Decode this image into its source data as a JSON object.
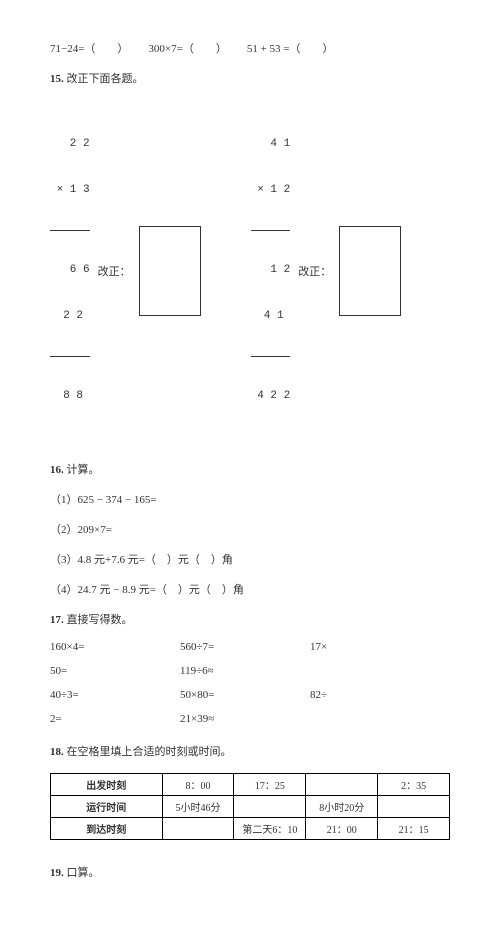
{
  "q14": {
    "items": [
      "71−24=（　　）",
      "300×7=（　　）",
      "51 + 53 =（　　）"
    ]
  },
  "q15": {
    "number": "15.",
    "title": "改正下面各题。",
    "label": "改正：",
    "left": {
      "r1": "  2 2",
      "r2": "× 1 3",
      "r3": "  6 6",
      "r4": " 2 2 ",
      "r5": " 8 8 "
    },
    "right": {
      "r1": "  4 1",
      "r2": "× 1 2",
      "r3": "  1 2",
      "r4": " 4 1 ",
      "r5": "4 2 2"
    }
  },
  "q16": {
    "number": "16.",
    "title": "计算。",
    "items": [
      "（1）625 − 374 − 165=",
      "（2）209×7=",
      "（3）4.8 元+7.6 元=（　）元（　）角",
      "（4）24.7 元 − 8.9 元=（　）元（　）角"
    ]
  },
  "q17": {
    "number": "17.",
    "title": "直接写得数。",
    "cells": [
      "160×4=",
      "560÷7=",
      "17×",
      "50=",
      "119÷6≈",
      "",
      "40÷3=",
      "50×80=",
      "82÷",
      "2=",
      "21×39≈",
      ""
    ]
  },
  "q18": {
    "number": "18.",
    "title": "在空格里填上合适的时刻或时间。",
    "table": {
      "rows": [
        [
          "出发时刻",
          "8：00",
          "17：25",
          "",
          "2：35"
        ],
        [
          "运行时间",
          "5小时46分",
          "",
          "8小时20分",
          ""
        ],
        [
          "到达时刻",
          "",
          "第二天6：10",
          "21：00",
          "21：15"
        ]
      ]
    }
  },
  "q19": {
    "number": "19.",
    "title": "口算。"
  }
}
